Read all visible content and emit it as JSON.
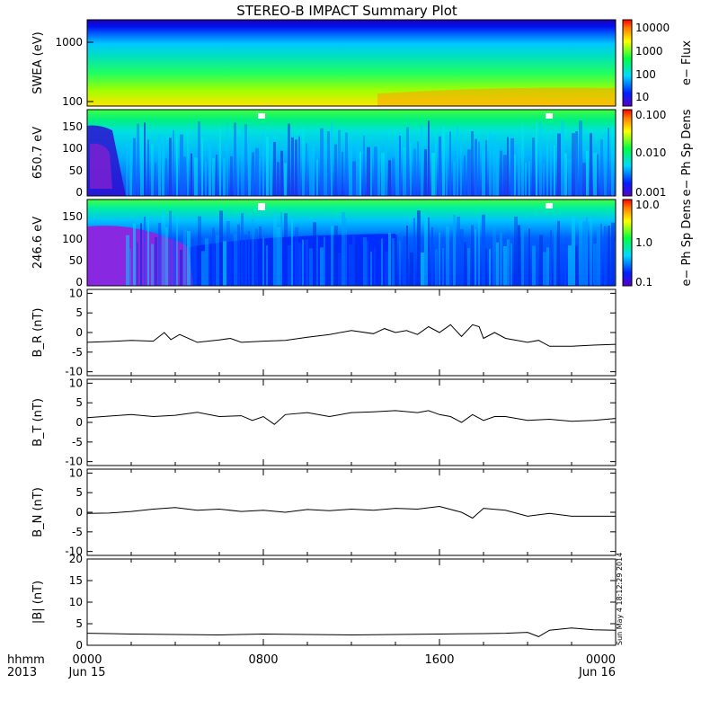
{
  "title": "STEREO-B IMPACT Summary Plot",
  "stamp": "Sun May  4 18:12:29 2014",
  "x_axis": {
    "row1": [
      "0000",
      "0800",
      "1600",
      "0000"
    ],
    "row2": [
      "Jun 15",
      "",
      "",
      "Jun 16"
    ],
    "left_row1": "hhmm",
    "left_row2": "2013",
    "range_hours": [
      0,
      24
    ]
  },
  "chart_data": [
    {
      "type": "heatmap",
      "ylabel": "SWEA (eV)",
      "yscale": "log",
      "ylim": [
        90,
        2000
      ],
      "yticks": [
        "100",
        "1000"
      ],
      "colorbar": {
        "label": "e− Flux",
        "scale": "log",
        "range": [
          5,
          15000
        ],
        "ticks": [
          "10",
          "100",
          "1000",
          "10000"
        ]
      }
    },
    {
      "type": "heatmap",
      "ylabel": "650.7 eV",
      "ylim": [
        0,
        180
      ],
      "yticks": [
        "0",
        "50",
        "100",
        "150"
      ],
      "colorbar": {
        "label": "e− Ph Sp Dens",
        "scale": "log",
        "range": [
          0.001,
          0.1
        ],
        "ticks": [
          "0.001",
          "0.010",
          "0.100"
        ]
      }
    },
    {
      "type": "heatmap",
      "ylabel": "246.6 eV",
      "ylim": [
        0,
        180
      ],
      "yticks": [
        "0",
        "50",
        "100",
        "150"
      ],
      "colorbar": {
        "label": "e− Ph Sp Dens",
        "scale": "log",
        "range": [
          0.1,
          10
        ],
        "ticks": [
          "0.1",
          "1.0",
          "10.0"
        ]
      }
    },
    {
      "type": "line",
      "ylabel": "B_R (nT)",
      "ylim": [
        -11,
        11
      ],
      "yticks": [
        "-10",
        "-5",
        "0",
        "5",
        "10"
      ],
      "x": [
        0,
        1,
        2,
        3,
        3.5,
        3.8,
        4.2,
        4.8,
        5,
        6,
        6.5,
        7,
        8,
        9,
        10,
        11,
        12,
        13,
        13.5,
        14,
        14.5,
        15,
        15.5,
        16,
        16.5,
        17,
        17.5,
        17.8,
        18,
        18.5,
        19,
        20,
        20.5,
        21,
        22,
        23,
        24
      ],
      "y": [
        -2.5,
        -2.3,
        -2.0,
        -2.2,
        0.0,
        -1.8,
        -0.5,
        -2.0,
        -2.5,
        -1.9,
        -1.5,
        -2.5,
        -2.2,
        -2.0,
        -1.2,
        -0.5,
        0.5,
        -0.3,
        1.0,
        0.0,
        0.5,
        -0.5,
        1.5,
        0.0,
        2.0,
        -1.0,
        2.0,
        1.5,
        -1.5,
        0.0,
        -1.5,
        -2.5,
        -2.0,
        -3.5,
        -3.5,
        -3.2,
        -3.0
      ]
    },
    {
      "type": "line",
      "ylabel": "B_T (nT)",
      "ylim": [
        -11,
        11
      ],
      "yticks": [
        "-10",
        "-5",
        "0",
        "5",
        "10"
      ],
      "x": [
        0,
        1,
        2,
        3,
        4,
        5,
        6,
        7,
        7.5,
        8,
        8.5,
        9,
        10,
        11,
        12,
        13,
        14,
        15,
        15.5,
        16,
        16.5,
        17,
        17.5,
        18,
        18.5,
        19,
        20,
        21,
        22,
        23,
        24
      ],
      "y": [
        1.2,
        1.6,
        2.0,
        1.5,
        1.8,
        2.6,
        1.5,
        1.7,
        0.5,
        1.5,
        -0.5,
        2.0,
        2.5,
        1.5,
        2.5,
        2.7,
        3.0,
        2.5,
        3.0,
        2.0,
        1.5,
        0.0,
        2.0,
        0.5,
        1.5,
        1.5,
        0.5,
        0.8,
        0.3,
        0.5,
        1.0
      ]
    },
    {
      "type": "line",
      "ylabel": "B_N (nT)",
      "ylim": [
        -11,
        11
      ],
      "yticks": [
        "-10",
        "-5",
        "0",
        "5",
        "10"
      ],
      "x": [
        0,
        1,
        2,
        3,
        4,
        5,
        6,
        7,
        8,
        9,
        10,
        11,
        12,
        13,
        14,
        15,
        16,
        17,
        17.5,
        18,
        19,
        20,
        21,
        22,
        23,
        24
      ],
      "y": [
        -0.3,
        -0.2,
        0.2,
        0.8,
        1.2,
        0.5,
        0.8,
        0.2,
        0.5,
        0.0,
        0.7,
        0.4,
        0.8,
        0.5,
        1.0,
        0.8,
        1.5,
        0.0,
        -1.5,
        1.0,
        0.5,
        -1.0,
        -0.3,
        -1.0,
        -1.0,
        -1.0
      ]
    },
    {
      "type": "line",
      "ylabel": "|B| (nT)",
      "ylim": [
        0,
        20
      ],
      "yticks": [
        "0",
        "5",
        "10",
        "15",
        "20"
      ],
      "x": [
        0,
        2,
        4,
        6,
        8,
        10,
        12,
        14,
        16,
        18,
        19,
        20,
        20.5,
        21,
        22,
        23,
        24
      ],
      "y": [
        2.8,
        2.6,
        2.5,
        2.4,
        2.6,
        2.5,
        2.4,
        2.5,
        2.6,
        2.7,
        2.8,
        3.0,
        2.0,
        3.5,
        4.0,
        3.6,
        3.5
      ]
    }
  ]
}
